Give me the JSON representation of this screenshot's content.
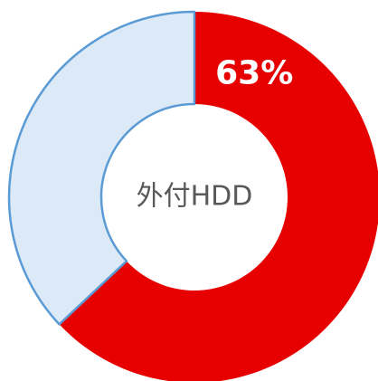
{
  "chart_data": {
    "type": "donut",
    "center_label": "外付HDD",
    "categories": [
      null,
      null
    ],
    "values": [
      63,
      37
    ],
    "value_labels": [
      "63%",
      null
    ],
    "colors": [
      "#e60000",
      "#dce9f6"
    ],
    "edge_colors": [
      "none",
      "#5b9bd5"
    ]
  }
}
